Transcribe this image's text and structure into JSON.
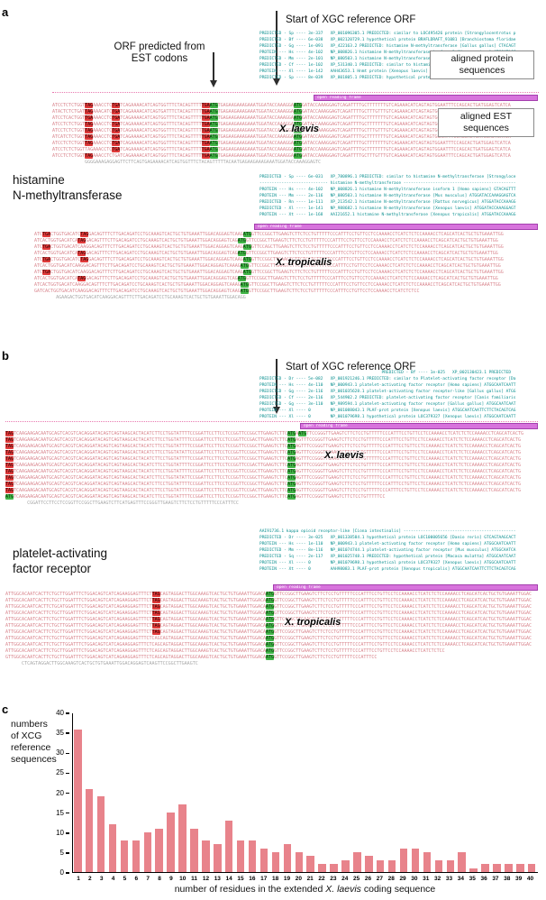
{
  "panels": {
    "a_letter": "a",
    "b_letter": "b",
    "c_letter": "c"
  },
  "panel_a": {
    "arrow_label": "Start of XGC reference ORF",
    "est_orf_label": "ORF predicted from\nEST codons",
    "box_protein": "aligned protein\nsequences",
    "box_est": "aligned EST\nsequences",
    "gene_label": "histamine\nN-methyltransferase",
    "laevis": {
      "species": "X. laevis",
      "orf_label": "open reading frame",
      "headers": [
        "PREDICTED - Sp ---- 3e-337   XP_001096305.1 PREDICTED: similar to LOC495426 protein [Strongylocentrotus p",
        "PREDICTED - Bf ---- 6e-038   XP_002120729.1 hypothetical protein BRAFLDRAFT_91081 [Branchiostoma floridae",
        "PREDICTED - Gg ---- 1e-091   XP_422163.2 PREDICTED: histamine N-methyltransferase [Gallus gallus] CTACAGT",
        "PROTEIN --- Hs ---- 4e-102   NP_008826.1 histamine N-methyltransferase isoform 1 [Homo sapiens] ATGGATACC",
        "PREDICTED - Mm ---- 2e-101   NP_080503.1 histamine N-methyltransferase [Mus musculus] ATGGATACCAAAGGAGTCA",
        "PREDICTED - Cf ---- 1e-102   XP_531340.1 PREDICTED: similar to histamine N-methyltransferase [Canis famil",
        "PROTEIN --- Xl ---- 1e-142   AAH43653.1 Hnmt protein [Xenopus laevis] ATGGATACCAAAGGAGTCAGATTTTGCTTTTTTTG",
        "PREDICTED - Sp ---- 8e-039   XP_801805.1 PREDICTED: hypothetical protein [Strongylocentrotus purpuratus]"
      ],
      "rows": [
        "ATCCTCTCTGGT{R:TAG}AAACCTC{R:TGA}TCAGAAAACATCAGTGGTTTCTACAGTTTT{R:TGA}{G:ATG}TGAGAAGAAAGAAATGGATACCAAAGGA{G:ATG}GATACCAAAGGAGTCAGATTTTGCTTTTTTTGTCAGAAACATCAGTAGTGGAATTTCCAGCACTGATGGAGTCATCA",
        "ATACTCTCTGAT{R:TAG}AAACATC{R:TGA}TCAGAAAACATCAGTGATTTCTACAGTTTT{R:TGA}{G:ATG}TGAGAAGAAAGAAATGGATACCAAAGGA{G:ATG}GATACCAAAGGAGTCAGATTTTGCTTTGTTTGTCAGAAACATCAGTAGTGGAATTTCCAGCACTGATGGAGTCATCA",
        "ATCCTCACTGGT{R:TGA}AAACCTC{R:TGA}TCAGAAAACATCAGTGGTTTCTACAGTTTT{R:TGA}{G:ATG}TGAGAAGAAAGAAATGGATACCAAAGGA{G:ATG}GATACCAAAGGAGTCAGATTTTGCTTTTTTTGTCAGAAACATCAGTAGTGGAATTTCCAGCACTGATGGAGTCATCA",
        "ATCCTCTCTGGT{R:TAG}AAACCTC{R:TGA}TCAGAAAACATCAGTGGTTTCTACAGTTTT{R:TGA}{G:ATG}TGAGAAGAAAGAAATGGATACCAAAGGA{G:ATG}GATACCAAAGGAGTCAGATTTTGCTTTTTTTGTCAGAAACATCAGTAGTGGAATTTCCAGCACTGATGGAGTCATCA",
        "ATCCTCTCTGGT{R:TAG}AAACCTC{R:TGA}TCAGAAAACATCAGTGGTTTCTACAGTTTT{R:TGA}{G:ATG}TGAGAAGAAAGAAATGGATACCAAAGGA{G:ATG}GATACCAAAGGAGTCAGATTTTGCTTTGTTTGTCAGAAACATCAGTAGTGGAATTTCCAGCACTGATGGAGTCATCA",
        "ATCATCTCTGGT{R:TAG}AAACCTC{R:TGA}TCAGAAAACATCAGTGGTTTCTACAGTTTT{R:TGA}{G:ATG}TGAGAAGAAAGAAATGGATACCAAAGGA{G:ATG}GATACCAAAGGAGTCAGATTTTGCTTTTTTTGTCAGAAACATCAGTAGTGGAATTTCCAGCACTGATGGAGTCATCA",
        "ATCCTCTCTGGT{R:TAG}AAACCTC{R:TGA}TCAGAAAACATCAGTGGTTTCTACAGTTTT{R:TGA}{G:ATG}TGAGAAGAAAGAAATGGATACCAAAGGA{G:ATG}GATACCAAAGGAGTCAGATTTTGCTTTTTTTGTCAGAAACATCAGTAGTGGAATTTCCAGCACTGATGGAGTCATCA",
        "ATCCTCTCTGGTTAGAAACCTC{R:TGA}TCAGAAAACATCAGTGGTTTCTACAGTTTT{R:TGA}{G:ATG}TGAGAAGAAAGAAATGGATACCAAAGGA{G:ATG}GATACCAAAGGAGTCAGATTTTGCTTTTTTTGTCAGAAACATCAGTAGTGGAATTTCCAGCACTGATGGAGTCATCA",
        "ATCCTCTCTGGT{R:TAG}AAACCTCTGATCAGAAAACATCAGTGGTTTCTACAGTTTT{R:TGA}{G:ATG}TGAGAAGAAAGAAATGGATACCAAAGGA{G:ATG}GATACCAAAGGAGTCAGATTTTGCTTTGTTTGTCAGAAACATCAGTAGTGGAATTTCCAGCACTGATGGAGTCATCA",
        "~            GGGGAAAGAGGAGTTCTTCAGTGAGAAAACATCAGTGGTTTCTACAGTTTTTACAATGAGAAGAAAGAAATGGATACCAAAGGAGTC"
      ]
    },
    "tropicalis": {
      "species": "X. tropicalis",
      "orf_label": "open reading frame",
      "headers": [
        "PREDICTED - Sp ---- 6e-031   XP_780896.1 PREDICTED: similar to histamine N-methyltransferase [Strongyloce",
        "---------------------------- histamine N-methyltransferase ----------------------------------------------",
        "PROTEIN --- Hs ---- 4e-102   NP_008826.1 histamine N-methyltransferase isoform 1 [Homo sapiens] GTACAGTTT",
        "PROTEIN --- Mm ---- 2e-116   NP_080503.1 histamine N-methyltransferase [Mus musculus] ATGGATACCAAAGGAGTCA",
        "PREDICTED - Rn ---- 1e-111   XP_213542.1 histamine N-methyltransferase [Rattus norvegicus] ATGGATACCAAAGG",
        "PREDICTED - Xl ---- 1e-141   NP_988682.1 histamine N-methyltransferase [Xenopus laevis] ATGGATACCAAAGGAGT",
        "PROTEIN --- Xt ---- 1e-168   AAI21652.1 histamine N-methyltransferase [Xenopus tropicalis] ATGGATACCAAAGG"
      ],
      "rows": [
        "ATC{R:TGA}CTGGTGACATC{R:TAG}GACAGTTTCTTGACAGATCCTGCAAAGTCACTGCTGTGAAATTGGACAGGAGTCAAG{G:ATG}GTTCCGGCTTGAAGTCTTCTCCTGTTTTTCCCATTTCCTGTTCCTCCAAAACCTCATCTCTCCAAAACCTCAGCATCACTGCTGTGAAATTGG",
        "ATCACTGGTGACATCA{R:TAG}GACAGTTTCTTGACAGATCCTGCAAAGTCACTGCTGTGAAATTGGACAGGAGTCAG{G:ATG}GTTCCGGCTTGAAGTCTTCTCCTGTTTTTCCCATTTCCTGTTCCTCCAAAACCTCATCTCTCCAAAACCTCAGCATCACTGCTGTGAAATTGG",
        "ATC{R:TGA}CTGGTGACATCAAGGACAGTTTCTTGACAGATCCTGCAAAGTCACTGCTGTGAAATTGGACAGGAGTCAAG{G:ATG}GTTCCAGCTTGAAGTCTTCTCCTGTTTTTCCCATTTCCTGTTCCTCCAAAACCTCATCTCTCCAAAACCTCAGCATCACTGCTGTGAAATTGG",
        "ATCACTGGTGACATCA{R:TAG}GACAGTTTCTTGACAGATCCTGCAAAGTCACTGCTGTGAAATTGGACAGGAGTCAG{G:ATG}GTTCCGGCTTGAAGTCTTCTCCTGTTTTTCCCATTTCCTGTTCCTCCAAAACCTCATCTCTCCAAAACCTCAGCATCACTGCTGTGAAATTGG",
        "ATC{R:TGA}CTGGTGACATC{R:TAG}GACAGTTTCTTGACAGATCCTGCAAAGTCACTGCTGTGAAATTGGACAGGAGTCAAG{G:ATG}GTTCCGGCTTGAAGTCTTCTCCTGTTTTTCCCATTTCCTGTTCCTCCAAAACCTCATCTCTCCAAAACCTCAGCATCACTGCTGTGAAATTGG",
        "ATCACTGGTGACATCAAGGACAGTTTCTTGACAGATCCTGCAAAGTCACTGCTGTGAAATTGGACAGGAGTCAAAG{G:ATG}GTTCCGGCTTGAAGTCTTCTCCTGTTTTTCCCATTTCCTGTTCCTCCAAAACCTCATCTCTCCAAAACCTCAGCATCACTGCTGTGAAATTGG",
        "ATC{R:TGA}CTGGTGACATCAAGGACAGTTTCTTGACAGATCCTGCAAAGTCACTGCTGTGAAATTGGACAGGAGTCAAG{G:ATG}GTTCCGGCTTGAAGTCTTCTCCTGTTTTTCCCATTTCCTGTTCCTCCAAAACCTCATCTCTCCAAAACCTCAGCATCACTGCTGTGAAATTGG",
        "ATCACTGGTGACATCA{R:TAG}GACAGTTTCTTGACAGATCCTGCAAAGTCACTGCTGTGAAATTGGACAGGAGTCAG{G:ATG}GTTCCGGCTTGAAGTCTTCTCCTGTTTTTCCCATTTCCTGTTCCTCCAAAACCTCATCTCTCCAAAACCTCAGCATCACTGCTGTGAAATTGG",
        "ATCACTGGTGACATCAAGGACAGTTTCTTGACAGATCCTGCAAAGTCACTGCTGTGAAATTGGACAGGAGTCAAAG{G:ATG}GTTCCGGCTTGAAGTCTTCTCCTGTTTTTCCCATTTCCTGTTCCTCCAAAACCTCATCTCTCCAAAACCTCAGCATCACTGCTGTGAAATTGG",
        "GATCACTGGTGACATCAAGGACAGTTTCTTGACAGATCCTGCAAAGTCACTGCTGTGAAATTGGACAGGAGTCAAG{G:ATG}GTTCCGGCTTGAAGTCTTCTCCTGTTTTTCCCATTTCCTGTTCCTCCAAAACCTCATCTCTCC",
        "~        AGAAGACTGGTGACATCAAGGACAGTTTCTTGACAGATCCTGCAAAGTCACTGCTGTGAAATTGGACAGG"
      ]
    }
  },
  "panel_b": {
    "arrow_label": "Start of XGC reference ORF",
    "gene_label": "platelet-activating\nfactor receptor",
    "laevis": {
      "species": "X. laevis",
      "orf_label": "open reading frame",
      "headers": [
        "                                                  PREDICTED - Bf ---- 1e-025   XP_002130423.1 PREDICTED",
        "PREDICTED - Dr ---- 5e-082   XP_001921246.1 PREDICTED: similar to Platelet-activating factor receptor [Da",
        "PROTEIN --- Hs ---- 4e-110   NP_000943.1 platelet-activating factor receptor [Homo sapiens] ATGGCAATCAATT",
        "PREDICTED - Gg ---- 2e-116   XP_001035628.1 platelet-activating factor receptor-like [Gallus gallus] ATGG",
        "PREDICTED - Cf ---- 2e-116   XP_544902.2 PREDICTED: platelet-activating factor receptor [Canis familiaris",
        "PREDICTED - Gg ---- 3e-110   NP_989594.1 platelet-activating factor receptor [Gallus gallus] ATGGCAATCAAT",
        "PROTEIN --- Xl ---- 0        NP_001088043.1 PLAF-prot protein [Xenopus laevis] ATGGCAATCAATTCTTCTACAGTCAG",
        "PROTEIN --- Xl ---- 0        NP_001079698.1 hypothetical protein LOC379327 [Xenopus laevis] ATGGCAATCAATT"
      ],
      "rows": [
        "{R:TAG}TCAAGAAGACAATGCAGTCACGTCACAGGATACAGTCAGTAAGCACTACATCTTCCTGGTATTTTCCGGATTCCTTCCTCCGGTTCCGGCTTGAAGTCTTC{G:ATG}A{G:ATG}TTCCGGGTTGAAGTCTTCTCCTGTTTTTCCCATTTCCTGTTCCTCCAAAACCTCATCTCTCCAAAACCTCAGCATCACTG",
        "{R:TAG}TCAAGAAGACAATGCAGTCACGTCACAGGATACAGTCAGTAAGCACTACATCTTCCTGGTATTTTCCGGATTCCTTCCTCCGGTTCCGACTTGAAGTCTTC{G:ATG}AGTTTCCGGGTTGAAGTCTTCTCCTGTTTTTCCCATTTCCTGTTCCTCCAAAACCTCATCTCTCCAAAACCTCAGCATCACTG",
        "{R:TAG}TCAAGAAGACAATGCAGTCACGTCACAGGATACAGTCAGTAAGCACTACATCTTCCTGGTATTTTCCGGATTCCTTCCTCCGGTTCCGGCTTGAAGTCTTC{G:ATG}AGTTTCCGGGTTGAAGTCTTCTCCTGTTTTTCCCATTTCCTGTTCCTCCAAAACCTCATCTCTCCAAAACCTCAGCATCACTG",
        "{R:TAG}TCAAGAAGACAATGCAGTCACGTCACAGGATACAGTCAGTAAGCACTACATCTTCCTGGTATATTCCGGATTCCTTCCTCCGGTTCCGGCTTGAAGTCTTC{G:ATG}AGTTTCCGGGTTGAAGTCTTCTCCTGTTTTTCCCATTTCCTGTTCCTCCAAAACCTCATCTCTCCAAAACCTCAGCATCACTG",
        "{R:TAG}TCAAGAAGACAATGCAGTCACGTCACAGGATACAGTCAGTAAGCACTACATCTTCCTGGTATTTTCCGGATTCCTTCCTCCGGTTCCGGCTTGAAGTCTTC{G:ATG}AGTTTCCGGGTTGAAGTCTTCTCCTGTTTTTCCCATTTCCTGTTCCTCCAAAACCTCATCTCTCCAAAACCTCAGCATCACTG",
        "{R:TAG}TCAAGAAGACAATGCAGTCACGTCACAGGATACAGTCAGTAAGCACTACATCTTCCTGGTATTTTCCGGATTCCTTCCTCCGGTTCCGACTTGAAGTCTTC{G:ATG}AGTTTCCGGGTTGAAGTCTTCTCCTGTTTTTCCCATTTCCTGTTCCTCCAAAACCTCATCTCTCCAAAACCTCAGCATCACTG",
        "{R:TAG}TCAAGAAGACAATGCAGTCACGTCACAGGATACAGTCAGTAAGCACTACATCTTCCTGGTATTTTCCGGATTCCTTCCTCCGGTTCCGGCTTGAAGTCTTC{G:ATG}AGTTTCCGGGTTGAAGTCTTCTCCTGTTTTTCCCATTTCCTGTTCCTCCAAAACCTCATCTCTCCAAAACCTCAGCATCACTG",
        "{R:TAG}TCAAGAAGACAATGCAGTCACGTCACAGGATACAGTCAGTAAGCACTACATCTTCCTGGTATATTCCGGATTCCTTCCTCCGGTTCCGGCTTGAAGTCTTC{G:ATG}AGTTTCCGGGTTGAAGTCTTCTCCTGTTTTTCCCATTTCCTGTTCCTCCAAAACCTCATCTCTCCAAAACCTCAGCATCACTG",
        "{R:TAG}TCAAGAAGACAATGCAGTCACGTCACAGGATACAGTCAGTAAGCACTACATCTTCCTGGTATTTTCCGGATTCCTTCCTCCGGTTCCGGCTTGAAGTCTTC{G:ATG}AGTTTCCGGGTTGAAGTCTTCTCCTGTTTTTCCCATTTCCTGTTCCTCCAAAACCTCATCTCTCCAAAACCTCAGCATCACTG",
        "{R:TAG}TCAAGAAGACAATGCAGTCACGTCACAGGATACAGTCAGTAAGCACTACATCTTCCTGGTATTTTCCGGATTCCTTCCTCCGGTTCCGACTTGAAGTCTTC{G:ATG}AGTTTCCGGGTTGAAGTCTTCTCCTGTTTTTCCCATTTCCTGTTCCTCCAAAACCTCATCTCTCCAAAACCTCAGCATCACTG",
        "{G:ATG}TCAAGAAGACAATGCAGTCACGTCACAGGATACAGTCAGTAAGCACTACATCTTCCTGGTATTTTCCGGATTCCTTCCTCCGGTTCCGGCTTGAAGTCTTC{G:ATG}AGTTTCCGGGTTGAAGTCTTCTCCTGTTTTTCC",
        "~        CGGATTCCTTCCTCCGGTTCCGGCTTGAAGTCTTCATGAGTTTCCGGGTTGAAGTCTTCTCCTGTTTTTCCCATTTCC"
      ]
    },
    "tropicalis": {
      "species": "X. tropicalis",
      "orf_label": "open reading frame",
      "headers": [
        "AAI91736.1 kappa opioid receptor-like [Ciona intestinalis] ----------------------------------------------",
        "PREDICTED - Dr ---- 3e-025   XP_001338584.1 hypothetical protein LOC100005656 [Danio rerio] GTCAGTAAGCACT",
        "PROTEIN --- Hs ---- 1e-110   NP_000943.1 platelet-activating factor receptor [Homo sapiens] ATGGCAATCAATT",
        "PREDICTED - Mm ---- 8e-116   NP_001074744.1 platelet-activating factor receptor [Mus musculus] ATGGCAATCA",
        "PREDICTED - Sq ---- 2e-117   XP_001025748.1 PREDICTED: hypothetical protein [Macaca mulatta] ATGGCAATCAAT",
        "PROTEIN --- Xl ---- 0        NP_001079698.1 hypothetical protein LOC379327 [Xenopus laevis] ATGGCAATCAATT",
        "PROTEIN --- Xt ---- 0        AAH98083.1 PLAF-prot protein [Xenopus tropicalis] ATGGCAATCAATTCTTCTACAGTCAG"
      ],
      "rows": [
        "ATTGGCACAATCACTTCTGCTTGGATTTCTGGACAGTCATCAGAAGGAGTTTCT{R:TAG}CAGTAGGACTTGGCAAAGTCACTGCTGTGAAATTGGACA{G:ATG}GTTCCGGCTTGAAGTCTTCTCCTGTTTTTCCCATTTCCTGTTCCTCCAAAACCTCATCTCTCCAAAACCTCAGCATCACTGCTGTGAAATTGGAC",
        "ATTGGCACAATCACTTCTGCTTGGATTTCTGGACAGTCATCAGAAGGAGTTTCT{R:TAG}CAGTAGGACTTGGCAAAGTCACTGCTGTGAAATTGGACA{G:ATG}GTTCCGGCTTGAAGTCTTCTCCTGTTTTTCCCATTTCCTGTTCCTCCAAAACCTCATCTCTCCAAAACCTCAGCATCACTGCTGTGAAATTGGAC",
        "ATTGGCACAATCACTTCTGCATGGATTTCTGGACAGTCATCAGAAGGAGTTTCT{R:TAG}CAGTAGGACTTGGCAAAGTCACTGCTGTGAAATTGGACA{G:ATG}GTTCCGGCTTGAAGTCTTCTCCTGTTTTTCCCATTTCCTGTTCCTCCAAAACCTCATCTCTCCAAAACCTCAGCATCACTGCTGTGAAATTGGAC",
        "ATTGGCACAATCACTTCTGCTTGGATTTCTGGACAGTCATCAGAAGGAGTTTCT{R:TAG}CAGTAGGACTTGGCAAAGTCACTGCTGTGAAATTGGACA{G:ATG}GTTCCGGCTTGAAGTCTTCTCCTGTTTTTCCCATTTCCTGTTCCTCCAAAACCTCATCTCTCCAAAACCTCAGCATCACTGCTGTGAAATTGGAC",
        "ATTGGCACAATCACTTCTGCTTGGATTTCTGGACAGTCATCAGAAGGAGTTTCT{R:TAG}CAGTAGGACTTGGCAAAGTCACTGCTGTGAAATTGGACA{G:ATG}GTTCCAGCTTGAAGTCTTCTCCTGTTTTTCCCATTTCCTGTTCCTCCAAAACCTCATCTCTCCAAAACCTCAGCATCACTGCTGTGAAATTGGAC",
        "ATTGGCACAATCACTTCTGCTTGGATTTCTGGACAGTCATCAGAAGGAGTTTCT{R:TAG}CAGTAGGACTTGGCAAAGTCACTGCTGTGAAATTGGACA{G:ATG}GTTCCGGCTTGAAGTCTTCTCCTGTTTTTCCCATTTCCTGTTCCTCCAAAACCTCATCTCTCCAAAACCTCAGCATCACTGCTGTGAAATTGGAC",
        "ATTGGCACAATCACTTCTGCTTGGATTTCTGGACAGTCATCAGAAGGAGTTTCT{R:TAG}CAGTAGGACTTGGCAAAGTCACTGCTGTGAAATTGGACA{G:ATG}GTTCCGGCTTGAAGTCTTCTCCTGTTTTTCCCATTTCCTGTTCCTCCAAAACCTCATCTCTCCAAAACCTCAGCATCACTGCTGTGAAATTGGAC",
        "ATTGGCACAATCACTTCTGCTTGGATTTCTGGACAGTCATCAGAAGGAGTTTCTCAGCAGTAGGACTTGGCAAAGTCACTGCTGTGAAATTGGACA{G:ATG}GTTCCGGCTTGAAGTCTTCTCCTGTTTTTCCCATTTCCTGTTCCTCCAAAACCTCATCTCTCCAAAACCTCAGCATCACTGCTGTGAAATTGGAC",
        "ATTGGCACAATCACTTCTGCTTGGATTTCTGGACAGTCATCAGAAGGAGTTTCTCAGCAGTAGGACTTGGCAAAGTCACTGCTGTGAAATTGGACA{G:ATG}GTTCCGGCTTGAAGTCTTCTCCTGTTTTTCCCATTTCCTGTTCCTCCAAAACCTCATCTCTCCAAAACCTCAGCATCACTGCTGTGAAATTGGAC",
        "ATTGGCACAATCACTTCTGCTTGGATTTCTGGACAGTCATCAGAAGGAGTTTCTCAGCAGTAGGACTTGGCAAAGTCACTGCTGTGAAATTGGACA{G:ATG}GTTCCGGCTTGAAGTCTTCTCCTGTTTTTCCCATTTCCTGTTCCTCCAAAACCTCATCTCTCC",
        "GTTGGCACAATCACTTCTGCTTGGATTTCTGGACAGTCATCAGAAGGAGTTTCTCAGCAGTAGGACTTGGCAAAGTCACTGCTGTGAAATTGGACA{G:ATG}GTTCCGGCTTGAAGTCTTCTCCTGTTTTTCCCATTTCC",
        "~      CTCAGTAGGACTTGGCAAAGTCACTGCTGTGAAATTGGACAGGAGTCAAGTTCCGGCTTGAAGTC"
      ]
    }
  },
  "chart_data": {
    "type": "bar",
    "title": "",
    "categories": [
      1,
      2,
      3,
      4,
      5,
      6,
      7,
      8,
      9,
      10,
      11,
      12,
      13,
      14,
      15,
      16,
      17,
      18,
      19,
      20,
      21,
      22,
      23,
      24,
      25,
      26,
      27,
      28,
      29,
      30,
      31,
      32,
      33,
      34,
      35,
      36,
      37,
      38,
      39,
      40
    ],
    "values": [
      36,
      21,
      19,
      12,
      8,
      8,
      10,
      11,
      15,
      17,
      11,
      8,
      7,
      13,
      8,
      8,
      6,
      5,
      7,
      5,
      4,
      2,
      2,
      3,
      5,
      4,
      3,
      3,
      6,
      6,
      5,
      3,
      3,
      5,
      1,
      2,
      2,
      2,
      2,
      2
    ],
    "ylabel": "numbers\nof XCG\nreference\nsequences",
    "xlabel_prefix": "number of residues in the extended ",
    "xlabel_italic": "X. laevis",
    "xlabel_suffix": " coding sequence",
    "ylim": [
      0,
      40
    ],
    "yticks": [
      0,
      5,
      10,
      15,
      20,
      25,
      30,
      35,
      40
    ],
    "bar_color": "#e8838b",
    "grid": false,
    "legend": "none"
  }
}
